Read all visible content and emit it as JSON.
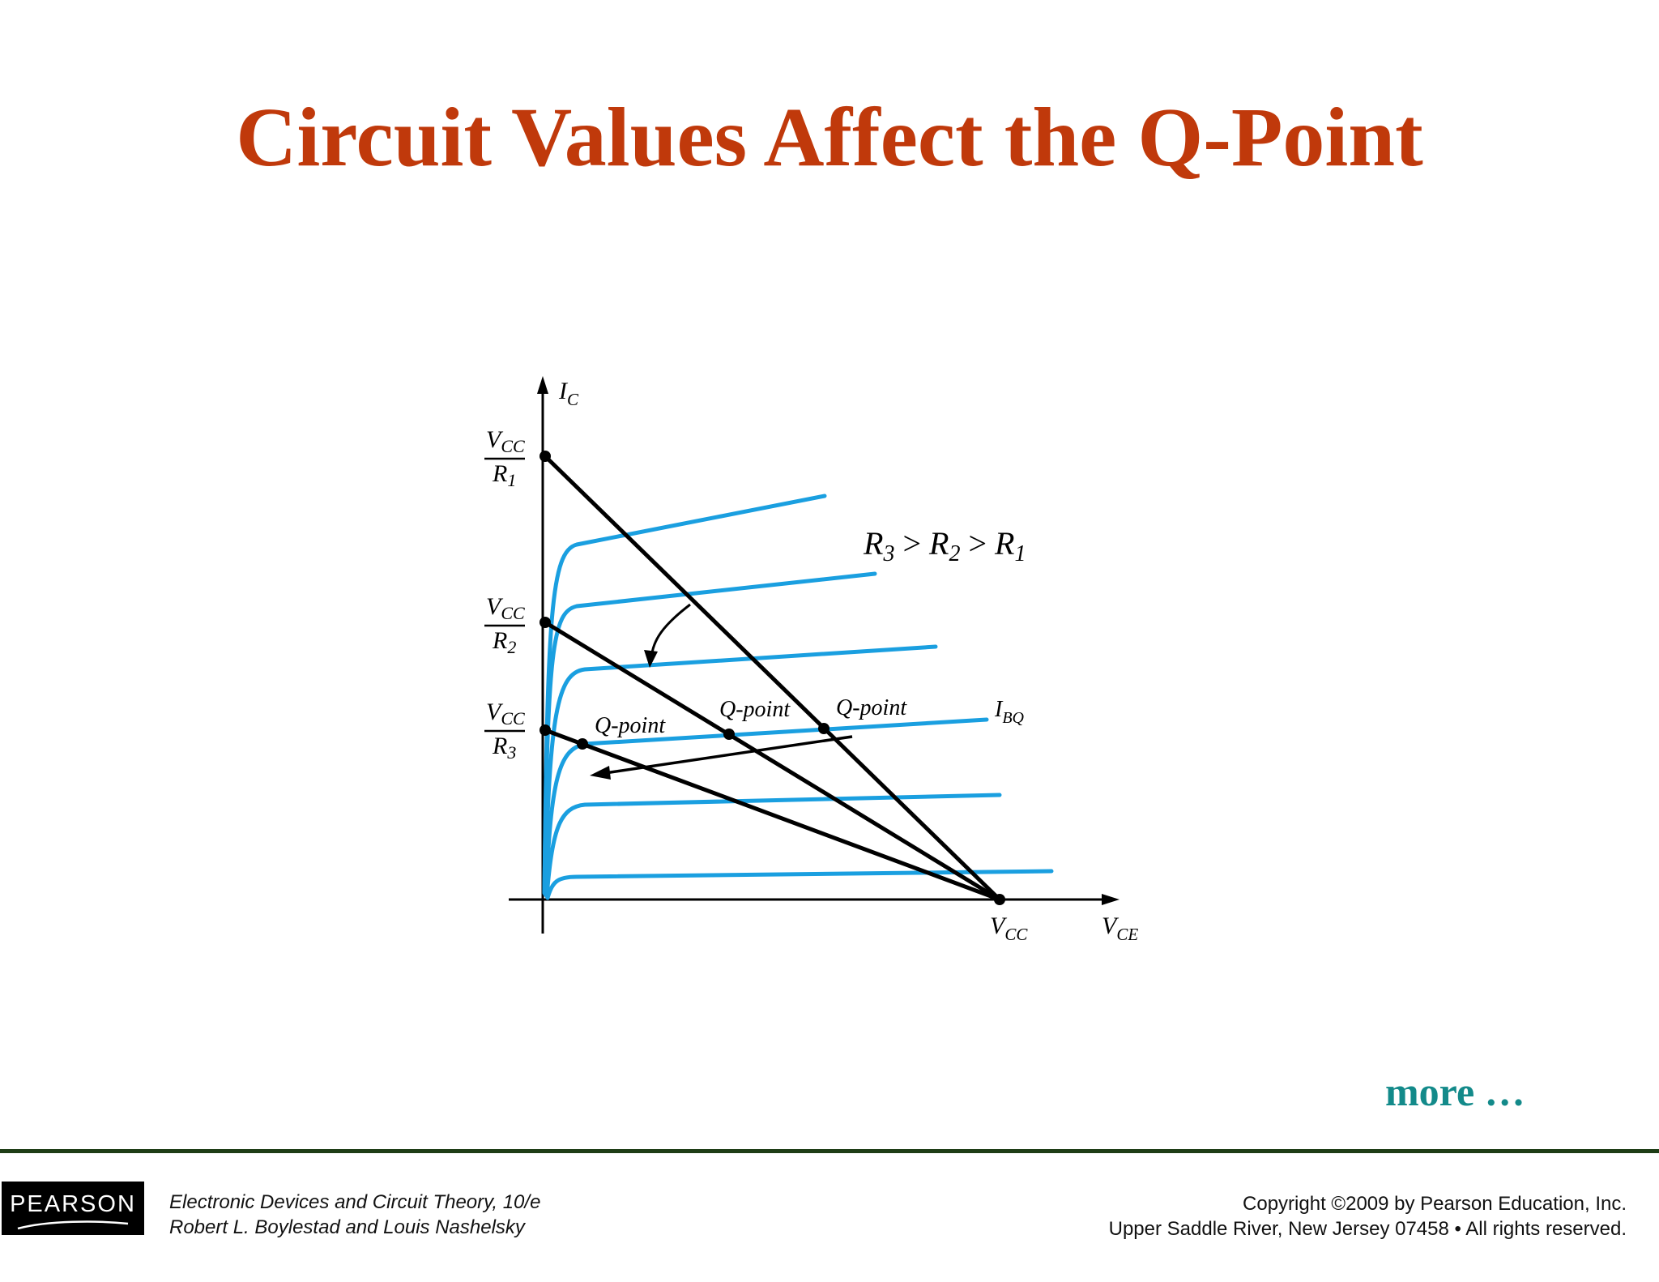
{
  "slide": {
    "title": "Circuit Values Affect the Q-Point",
    "more_text": "more …"
  },
  "diagram": {
    "y_axis_label": "I",
    "y_axis_sub": "C",
    "x_axis_label": "V",
    "x_axis_sub": "CE",
    "vcc_label": "V",
    "vcc_sub": "CC",
    "ibq_label": "I",
    "ibq_sub": "BQ",
    "fractions": [
      {
        "num": "V",
        "num_sub": "CC",
        "den": "R",
        "den_sub": "1"
      },
      {
        "num": "V",
        "num_sub": "CC",
        "den": "R",
        "den_sub": "2"
      },
      {
        "num": "V",
        "num_sub": "CC",
        "den": "R",
        "den_sub": "3"
      }
    ],
    "relation": {
      "a": "R",
      "a_sub": "3",
      "gt1": " > ",
      "b": "R",
      "b_sub": "2",
      "gt2": " > ",
      "c": "R",
      "c_sub": "1"
    },
    "qpoint_labels": [
      "Q-point",
      "Q-point",
      "Q-point"
    ],
    "colors": {
      "curve": "#1a9fe0",
      "line": "#000000"
    }
  },
  "footer": {
    "logo_text": "PEARSON",
    "book_title": "Electronic Devices and Circuit Theory, 10/e",
    "authors": "Robert L. Boylestad and Louis Nashelsky",
    "copyright": "Copyright ©2009 by Pearson Education, Inc.",
    "address": "Upper Saddle River, New Jersey 07458 • All rights reserved."
  }
}
